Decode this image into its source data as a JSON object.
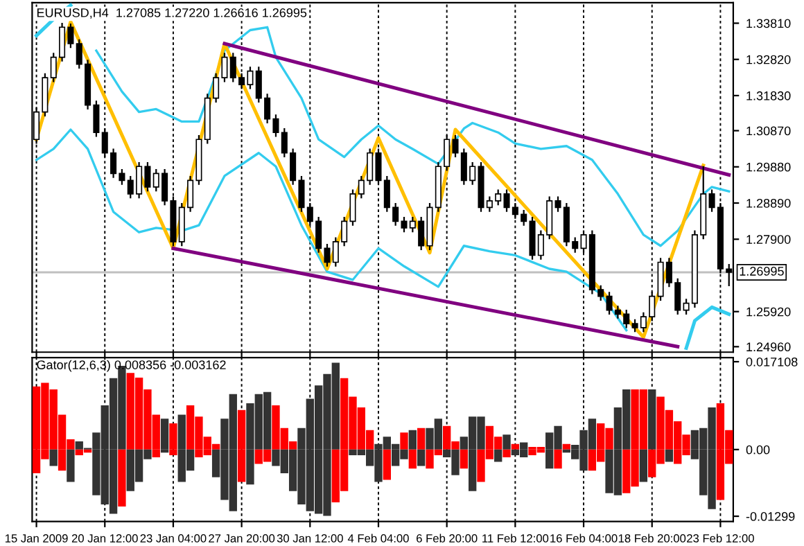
{
  "chart_data": [
    {
      "type": "candlestick",
      "title": "EURUSD,H4  1.27085 1.27220 1.26616 1.26995",
      "categories": [
        null,
        null,
        null,
        null,
        null,
        null,
        null,
        null,
        null,
        null,
        null,
        null,
        null,
        null,
        null,
        null,
        null,
        null,
        null,
        null,
        null,
        null,
        null,
        null,
        null,
        null,
        null,
        null,
        null,
        null,
        null,
        null,
        null,
        null,
        null,
        null,
        null,
        null,
        null,
        null,
        null,
        null,
        null,
        null,
        null,
        null,
        null,
        null,
        null,
        null,
        null,
        null,
        null,
        null,
        null,
        null,
        null,
        null,
        null,
        null,
        null,
        null,
        null,
        null,
        null,
        null,
        null,
        null,
        null,
        null,
        null,
        null,
        null,
        null,
        null,
        null,
        null,
        null,
        null,
        null,
        null,
        null
      ],
      "ohlc": [
        [
          1.3063,
          1.315,
          1.3051,
          1.3138
        ],
        [
          1.3138,
          1.3244,
          1.3126,
          1.3232
        ],
        [
          1.3232,
          1.33,
          1.322,
          1.3288
        ],
        [
          1.3288,
          1.3382,
          1.3276,
          1.337
        ],
        [
          1.337,
          1.338,
          1.3313,
          1.3325
        ],
        [
          1.3325,
          1.3337,
          1.3257,
          1.3269
        ],
        [
          1.3269,
          1.3281,
          1.3145,
          1.3157
        ],
        [
          1.3157,
          1.3169,
          1.307,
          1.3082
        ],
        [
          1.3082,
          1.3094,
          1.3014,
          1.3026
        ],
        [
          1.3026,
          1.3038,
          1.2958,
          1.297
        ],
        [
          1.297,
          1.2982,
          1.2939,
          1.2951
        ],
        [
          1.2951,
          1.2963,
          1.2902,
          1.2914
        ],
        [
          1.2914,
          1.3001,
          1.2902,
          1.2989
        ],
        [
          1.2989,
          1.3001,
          1.2921,
          1.2933
        ],
        [
          1.2933,
          1.2982,
          1.2921,
          1.297
        ],
        [
          1.297,
          1.2982,
          1.2883,
          1.2895
        ],
        [
          1.2895,
          1.2907,
          1.2771,
          1.2783
        ],
        [
          1.2783,
          1.2889,
          1.2771,
          1.2877
        ],
        [
          1.2877,
          1.2963,
          1.2865,
          1.2951
        ],
        [
          1.2951,
          1.3075,
          1.2939,
          1.3063
        ],
        [
          1.3063,
          1.3188,
          1.3051,
          1.3176
        ],
        [
          1.3176,
          1.3244,
          1.3164,
          1.3232
        ],
        [
          1.3232,
          1.33,
          1.322,
          1.3288
        ],
        [
          1.3288,
          1.33,
          1.322,
          1.3232
        ],
        [
          1.3232,
          1.3244,
          1.3201,
          1.3213
        ],
        [
          1.3213,
          1.3262,
          1.3201,
          1.325
        ],
        [
          1.325,
          1.3262,
          1.3164,
          1.3176
        ],
        [
          1.3176,
          1.3188,
          1.3107,
          1.3119
        ],
        [
          1.3119,
          1.3131,
          1.307,
          1.3082
        ],
        [
          1.3082,
          1.3094,
          1.3014,
          1.3026
        ],
        [
          1.3026,
          1.3038,
          1.2939,
          1.2951
        ],
        [
          1.2951,
          1.2963,
          1.2865,
          1.2877
        ],
        [
          1.2877,
          1.2889,
          1.2827,
          1.2839
        ],
        [
          1.2839,
          1.2851,
          1.2753,
          1.2765
        ],
        [
          1.2765,
          1.2777,
          1.2715,
          1.2727
        ],
        [
          1.2727,
          1.2795,
          1.2715,
          1.2783
        ],
        [
          1.2783,
          1.2851,
          1.2771,
          1.2839
        ],
        [
          1.2839,
          1.2926,
          1.2827,
          1.2914
        ],
        [
          1.2914,
          1.2963,
          1.2902,
          1.2951
        ],
        [
          1.2951,
          1.3038,
          1.2939,
          1.3026
        ],
        [
          1.3026,
          1.3038,
          1.2939,
          1.2951
        ],
        [
          1.2951,
          1.2963,
          1.2865,
          1.2877
        ],
        [
          1.2877,
          1.2889,
          1.2827,
          1.2839
        ],
        [
          1.2839,
          1.2851,
          1.2809,
          1.2821
        ],
        [
          1.2821,
          1.2851,
          1.2809,
          1.2839
        ],
        [
          1.2839,
          1.2851,
          1.276,
          1.2772
        ],
        [
          1.2772,
          1.2889,
          1.276,
          1.2877
        ],
        [
          1.2877,
          1.3001,
          1.2865,
          1.2989
        ],
        [
          1.2989,
          1.3075,
          1.2977,
          1.3063
        ],
        [
          1.3063,
          1.3075,
          1.3014,
          1.3026
        ],
        [
          1.3026,
          1.3038,
          1.2939,
          1.2951
        ],
        [
          1.2951,
          1.3001,
          1.2939,
          1.2989
        ],
        [
          1.2989,
          1.3001,
          1.2865,
          1.2877
        ],
        [
          1.2877,
          1.2907,
          1.2865,
          1.2895
        ],
        [
          1.2895,
          1.2926,
          1.2883,
          1.2914
        ],
        [
          1.2914,
          1.2926,
          1.2865,
          1.2877
        ],
        [
          1.2877,
          1.2889,
          1.2846,
          1.2858
        ],
        [
          1.2858,
          1.287,
          1.2827,
          1.2839
        ],
        [
          1.2839,
          1.2851,
          1.2734,
          1.2746
        ],
        [
          1.2746,
          1.2814,
          1.2734,
          1.2802
        ],
        [
          1.2802,
          1.2907,
          1.279,
          1.2895
        ],
        [
          1.2895,
          1.2907,
          1.2865,
          1.2877
        ],
        [
          1.2877,
          1.2889,
          1.2771,
          1.2783
        ],
        [
          1.2783,
          1.2795,
          1.2753,
          1.2765
        ],
        [
          1.2765,
          1.2814,
          1.2753,
          1.2802
        ],
        [
          1.2802,
          1.2814,
          1.264,
          1.2652
        ],
        [
          1.2652,
          1.2664,
          1.2622,
          1.2634
        ],
        [
          1.2634,
          1.2646,
          1.2584,
          1.2596
        ],
        [
          1.2596,
          1.2608,
          1.2573,
          1.2585
        ],
        [
          1.2585,
          1.2597,
          1.2547,
          1.2559
        ],
        [
          1.2559,
          1.2571,
          1.2536,
          1.2548
        ],
        [
          1.2548,
          1.259,
          1.2536,
          1.2578
        ],
        [
          1.2578,
          1.2646,
          1.2566,
          1.2634
        ],
        [
          1.2634,
          1.2739,
          1.2622,
          1.2727
        ],
        [
          1.2727,
          1.2739,
          1.2659,
          1.2671
        ],
        [
          1.2671,
          1.2683,
          1.2584,
          1.2596
        ],
        [
          1.2596,
          1.2627,
          1.2584,
          1.2615
        ],
        [
          1.2615,
          1.2814,
          1.2603,
          1.2802
        ],
        [
          1.2802,
          1.299,
          1.279,
          1.2914
        ],
        [
          1.2914,
          1.2926,
          1.2865,
          1.2877
        ],
        [
          1.2877,
          1.2889,
          1.2697,
          1.2709
        ],
        [
          1.27085,
          1.2722,
          1.26616,
          1.26995
        ]
      ],
      "series": [
        {
          "type": "line",
          "color": "#33ccee",
          "values": [
            1.3347,
            null,
            1.3392,
            null,
            1.343,
            null,
            null,
            null,
            null,
            null,
            null,
            null,
            null,
            null,
            null,
            null,
            null,
            null,
            null,
            null,
            null,
            null,
            null,
            null,
            null,
            null,
            null,
            null,
            null,
            null,
            null,
            null,
            null,
            null,
            null,
            null,
            null,
            null,
            null,
            null,
            null,
            null,
            null,
            null,
            null,
            null,
            null,
            null,
            null,
            null,
            null,
            null,
            null,
            null,
            null,
            null,
            null,
            null,
            null,
            null,
            null,
            null,
            null,
            null,
            null,
            null,
            null,
            null,
            null,
            null,
            null,
            null,
            null,
            null,
            null,
            null,
            null,
            null,
            null,
            null,
            null,
            null
          ]
        },
        {
          "type": "line",
          "color": "#33ccee",
          "values": [
            null,
            null,
            null,
            null,
            null,
            null,
            null,
            1.3306,
            null,
            null,
            1.3194,
            null,
            1.3138,
            null,
            1.3146,
            null,
            null,
            1.3112,
            null,
            1.3112,
            1.3176,
            null,
            1.3306,
            null,
            null,
            1.3362,
            null,
            1.337,
            1.3288,
            null,
            null,
            1.3176,
            null,
            1.3063,
            null,
            null,
            1.3015,
            null,
            1.3063,
            null,
            1.3101,
            null,
            1.3063,
            null,
            1.3037,
            null,
            null,
            1.2996,
            null,
            null,
            1.3093,
            1.3108,
            null,
            null,
            1.3082,
            null,
            1.3052,
            null,
            null,
            1.3037,
            null,
            null,
            1.3045,
            null,
            null,
            1.3007,
            null,
            null,
            1.2914,
            null,
            null,
            1.2802,
            null,
            1.2772,
            null,
            1.2813,
            null,
            null,
            1.2914,
            1.2933,
            null,
            1.2921
          ]
        },
        {
          "type": "line",
          "color": "#33ccee",
          "values": [
            1.3007,
            null,
            1.3037,
            null,
            1.309,
            null,
            1.3037,
            null,
            null,
            1.2865,
            null,
            null,
            1.2809,
            null,
            1.2821,
            null,
            null,
            1.2813,
            null,
            1.2828,
            null,
            null,
            1.2963,
            null,
            null,
            null,
            1.3026,
            null,
            1.2989,
            null,
            null,
            1.2828,
            null,
            null,
            1.2701,
            null,
            null,
            1.2679,
            null,
            null,
            1.2765,
            null,
            null,
            1.2716,
            null,
            null,
            null,
            1.266,
            null,
            null,
            1.2772,
            null,
            null,
            1.2757,
            null,
            null,
            1.2746,
            null,
            null,
            null,
            1.2709,
            null,
            1.2701,
            null,
            null,
            null,
            1.2641,
            null,
            null,
            1.2541,
            null,
            null,
            null,
            null,
            null,
            null,
            null,
            null,
            null,
            null,
            null,
            null
          ]
        },
        {
          "type": "line",
          "color": "#33ccee",
          "values": [
            null,
            null,
            null,
            null,
            null,
            null,
            null,
            null,
            null,
            null,
            null,
            null,
            null,
            null,
            null,
            null,
            null,
            null,
            null,
            null,
            null,
            null,
            null,
            null,
            null,
            null,
            null,
            null,
            null,
            null,
            null,
            null,
            null,
            null,
            null,
            null,
            null,
            null,
            null,
            null,
            null,
            null,
            null,
            null,
            null,
            null,
            null,
            null,
            null,
            null,
            null,
            null,
            null,
            null,
            null,
            null,
            null,
            null,
            null,
            null,
            null,
            null,
            null,
            null,
            null,
            null,
            null,
            null,
            null,
            null,
            null,
            null,
            null,
            null,
            null,
            null,
            1.2492,
            1.2567,
            null,
            1.2604,
            null,
            1.2585
          ]
        },
        {
          "type": "line",
          "color": "#ffbf00",
          "values": [
            1.3063,
            null,
            null,
            null,
            1.3385,
            null,
            null,
            null,
            null,
            null,
            null,
            null,
            null,
            null,
            null,
            null,
            1.2765,
            null,
            null,
            null,
            null,
            null,
            1.3325,
            null,
            null,
            null,
            null,
            null,
            null,
            null,
            null,
            null,
            null,
            null,
            1.2709,
            null,
            null,
            null,
            null,
            null,
            1.3067,
            null,
            null,
            null,
            null,
            null,
            1.2753,
            null,
            null,
            1.309,
            null,
            null,
            null,
            null,
            null,
            null,
            null,
            null,
            null,
            null,
            null,
            null,
            null,
            null,
            null,
            null,
            null,
            null,
            null,
            null,
            null,
            1.2522,
            null,
            null,
            null,
            null,
            null,
            null,
            1.2992,
            null,
            null,
            null
          ]
        },
        {
          "type": "line",
          "color": "#800080",
          "values": [
            null,
            null,
            null,
            null,
            null,
            null,
            null,
            null,
            null,
            null,
            null,
            null,
            null,
            null,
            null,
            null,
            null,
            null,
            null,
            null,
            null,
            null,
            1.3325,
            null,
            null,
            null,
            null,
            null,
            null,
            null,
            null,
            null,
            null,
            null,
            null,
            null,
            null,
            null,
            null,
            null,
            null,
            null,
            null,
            null,
            null,
            null,
            null,
            null,
            null,
            null,
            null,
            null,
            null,
            null,
            null,
            null,
            null,
            null,
            null,
            null,
            null,
            null,
            null,
            null,
            null,
            null,
            null,
            null,
            null,
            null,
            null,
            null,
            null,
            null,
            null,
            null,
            null,
            null,
            null,
            null,
            null,
            1.2966
          ]
        },
        {
          "type": "line",
          "color": "#800080",
          "values": [
            null,
            null,
            null,
            null,
            null,
            null,
            null,
            null,
            null,
            null,
            null,
            null,
            null,
            null,
            null,
            null,
            1.2765,
            null,
            null,
            null,
            null,
            null,
            null,
            null,
            null,
            null,
            null,
            null,
            null,
            null,
            null,
            null,
            null,
            null,
            null,
            null,
            null,
            null,
            null,
            null,
            null,
            null,
            null,
            null,
            null,
            null,
            null,
            null,
            null,
            null,
            null,
            null,
            null,
            null,
            null,
            null,
            null,
            null,
            null,
            null,
            null,
            null,
            null,
            null,
            null,
            null,
            null,
            null,
            null,
            null,
            null,
            null,
            null,
            null,
            null,
            1.2496,
            null,
            null,
            null,
            null,
            null,
            null
          ]
        }
      ],
      "ylim": [
        1.2481,
        1.3437
      ],
      "yticks": [
        {
          "value": 1.3381,
          "label": "1.33810"
        },
        {
          "value": 1.3282,
          "label": "1.32820"
        },
        {
          "value": 1.3183,
          "label": "1.31830"
        },
        {
          "value": 1.3087,
          "label": "1.30870"
        },
        {
          "value": 1.2988,
          "label": "1.29880"
        },
        {
          "value": 1.2889,
          "label": "1.28890"
        },
        {
          "value": 1.279,
          "label": "1.27900"
        },
        {
          "value": 1.2592,
          "label": "1.25920"
        },
        {
          "value": 1.2496,
          "label": "1.24960"
        }
      ],
      "ref_lines": [
        {
          "axis": "y",
          "value": 1.26995,
          "label": "1.26995",
          "color": "#c0c0c0"
        }
      ],
      "grid": "x",
      "tick_labels": "y"
    },
    {
      "type": "bar",
      "title": "Gator(12,6,3) 0.008356 -0.003162",
      "categories": [
        "15 Jan 2009",
        null,
        null,
        null,
        null,
        null,
        null,
        null,
        "20 Jan 12:00",
        null,
        null,
        null,
        null,
        null,
        null,
        null,
        "23 Jan 04:00",
        null,
        null,
        null,
        null,
        null,
        null,
        null,
        "27 Jan 20:00",
        null,
        null,
        null,
        null,
        null,
        null,
        null,
        "30 Jan 12:00",
        null,
        null,
        null,
        null,
        null,
        null,
        null,
        "4 Feb 04:00",
        null,
        null,
        null,
        null,
        null,
        null,
        null,
        "6 Feb 20:00",
        null,
        null,
        null,
        null,
        null,
        null,
        null,
        "11 Feb 12:00",
        null,
        null,
        null,
        null,
        null,
        null,
        null,
        "16 Feb 04:00",
        null,
        null,
        null,
        null,
        null,
        null,
        null,
        "18 Feb 20:00",
        null,
        null,
        null,
        null,
        null,
        null,
        null,
        "23 Feb 12:00",
        null
      ],
      "series": [
        {
          "values": [
            0.0123,
            0.013,
            0.0117,
            0.0068,
            0.002,
            0.0016,
            0.0003,
            0.0033,
            0.0086,
            0.0139,
            0.0163,
            0.0149,
            0.014,
            0.0117,
            0.0068,
            0.006,
            0.0051,
            0.0068,
            0.0086,
            0.0064,
            0.0025,
            0.0011,
            0.006,
            0.0108,
            0.0077,
            0.009,
            0.0108,
            0.0112,
            0.0086,
            0.0042,
            0.0016,
            0.0042,
            0.0099,
            0.0125,
            0.0147,
            0.0169,
            0.0139,
            0.0103,
            0.0082,
            0.0038,
            0.0011,
            0.0025,
            0.0011,
            0.0033,
            0.0038,
            0.0042,
            0.0042,
            0.006,
            0.0046,
            0.0016,
            0.0025,
            0.0064,
            0.0064,
            0.0046,
            0.0025,
            0.0029,
            0.0011,
            0.0014,
            0.0005,
            0.0005,
            0.0033,
            0.0046,
            0.0011,
            0.0009,
            0.0038,
            0.006,
            0.0051,
            0.0042,
            0.0082,
            0.0117,
            0.0117,
            0.0117,
            0.0117,
            0.0103,
            0.0077,
            0.0055,
            0.0029,
            0.0038,
            0.0042,
            0.0082,
            0.009,
            0.0038
          ],
          "colors": [
            "#ff0000",
            "#ff0000",
            "#ff0000",
            "#ff0000",
            "#ff0000",
            "#333333",
            "#333333",
            "#333333",
            "#333333",
            "#333333",
            "#333333",
            "#ff0000",
            "#ff0000",
            "#ff0000",
            "#ff0000",
            "#333333",
            "#ff0000",
            "#333333",
            "#ff0000",
            "#ff0000",
            "#ff0000",
            "#ff0000",
            "#333333",
            "#333333",
            "#ff0000",
            "#333333",
            "#333333",
            "#333333",
            "#ff0000",
            "#ff0000",
            "#ff0000",
            "#333333",
            "#333333",
            "#333333",
            "#333333",
            "#333333",
            "#ff0000",
            "#ff0000",
            "#ff0000",
            "#ff0000",
            "#333333",
            "#333333",
            "#333333",
            "#ff0000",
            "#333333",
            "#ff0000",
            "#333333",
            "#333333",
            "#ff0000",
            "#ff0000",
            "#333333",
            "#333333",
            "#333333",
            "#ff0000",
            "#ff0000",
            "#333333",
            "#ff0000",
            "#333333",
            "#ff0000",
            "#ff0000",
            "#333333",
            "#333333",
            "#ff0000",
            "#333333",
            "#333333",
            "#333333",
            "#ff0000",
            "#ff0000",
            "#333333",
            "#333333",
            "#ff0000",
            "#ff0000",
            "#333333",
            "#ff0000",
            "#ff0000",
            "#ff0000",
            "#ff0000",
            "#333333",
            "#333333",
            "#333333",
            "#ff0000",
            "#ff0000"
          ]
        },
        {
          "values": [
            -0.0046,
            -0.0019,
            -0.0032,
            -0.0041,
            -0.0063,
            -0.0011,
            -0.0006,
            -0.0089,
            -0.0107,
            -0.0125,
            -0.0111,
            -0.0081,
            -0.0063,
            -0.0019,
            -0.0015,
            -0.0006,
            -0.0011,
            -0.0063,
            -0.0041,
            -0.0015,
            -0.0011,
            -0.0054,
            -0.0098,
            -0.012,
            -0.0063,
            -0.0068,
            -0.0028,
            -0.0024,
            -0.0032,
            -0.0046,
            -0.0081,
            -0.0107,
            -0.012,
            -0.0125,
            -0.0129,
            -0.0103,
            -0.0081,
            -0.0011,
            -0.0011,
            -0.0032,
            -0.0063,
            -0.0059,
            -0.0032,
            -0.0019,
            -0.0037,
            -0.0032,
            -0.0037,
            -0.0011,
            -0.0015,
            -0.005,
            -0.0037,
            -0.0081,
            -0.0063,
            -0.0019,
            -0.0024,
            -0.0015,
            -0.0011,
            -0.0015,
            -0.0011,
            -0.0006,
            -0.0037,
            -0.0037,
            -0.0006,
            -0.0019,
            -0.0041,
            -0.0041,
            -0.0024,
            -0.0085,
            -0.0089,
            -0.0085,
            -0.0072,
            -0.0063,
            -0.0054,
            -0.0028,
            -0.0024,
            -0.0028,
            -0.0011,
            -0.0019,
            -0.0089,
            -0.0116,
            -0.0098,
            -0.0028
          ],
          "colors": [
            "#ff0000",
            "#ff0000",
            "#333333",
            "#ff0000",
            "#333333",
            "#ff0000",
            "#ff0000",
            "#333333",
            "#333333",
            "#333333",
            "#ff0000",
            "#333333",
            "#333333",
            "#333333",
            "#ff0000",
            "#333333",
            "#ff0000",
            "#333333",
            "#333333",
            "#ff0000",
            "#ff0000",
            "#333333",
            "#333333",
            "#333333",
            "#ff0000",
            "#333333",
            "#ff0000",
            "#ff0000",
            "#333333",
            "#333333",
            "#333333",
            "#333333",
            "#333333",
            "#333333",
            "#333333",
            "#ff0000",
            "#ff0000",
            "#333333",
            "#333333",
            "#333333",
            "#333333",
            "#ff0000",
            "#333333",
            "#333333",
            "#ff0000",
            "#333333",
            "#ff0000",
            "#ff0000",
            "#333333",
            "#333333",
            "#ff0000",
            "#333333",
            "#ff0000",
            "#ff0000",
            "#333333",
            "#ff0000",
            "#333333",
            "#333333",
            "#ff0000",
            "#ff0000",
            "#333333",
            "#ff0000",
            "#333333",
            "#333333",
            "#333333",
            "#ff0000",
            "#ff0000",
            "#333333",
            "#333333",
            "#ff0000",
            "#ff0000",
            "#333333",
            "#ff0000",
            "#ff0000",
            "#333333",
            "#ff0000",
            "#ff0000",
            "#333333",
            "#333333",
            "#333333",
            "#ff0000",
            "#ff0000"
          ]
        }
      ],
      "ylim": [
        -0.014,
        0.0179
      ],
      "yticks": [
        {
          "value": 0.017108,
          "label": "0.017108"
        },
        {
          "value": 0.0,
          "label": "0.00"
        },
        {
          "value": -0.01299,
          "label": "-0.01299"
        }
      ],
      "stacked": true,
      "grid": "x"
    }
  ]
}
